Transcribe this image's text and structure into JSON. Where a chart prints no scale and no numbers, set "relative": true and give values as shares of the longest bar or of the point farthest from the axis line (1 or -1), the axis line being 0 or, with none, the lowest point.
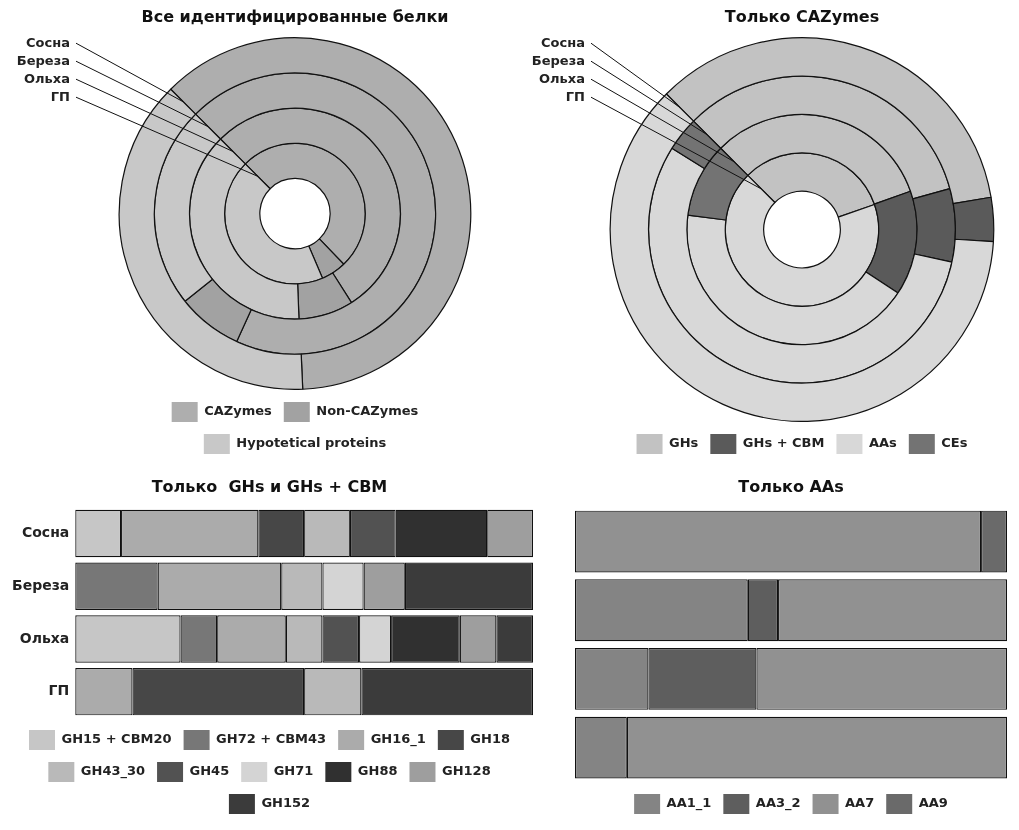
{
  "chart_data": [
    {
      "type": "donut",
      "title": "Все идентифицированные белки",
      "categories": [
        "CAZymes",
        "Non-CAZymes",
        "Hypotetical proteins"
      ],
      "colors": [
        "#aeaeae",
        "#a2a2a2",
        "#c8c8c8"
      ],
      "legend": "bottom",
      "series": [
        {
          "name": "Сосна",
          "values": [
            61.8,
            0,
            38.2
          ]
        },
        {
          "name": "Береза",
          "values": [
            69.3,
            7.5,
            23.2
          ]
        },
        {
          "name": "Ольха",
          "values": [
            53.5,
            8.4,
            38.1
          ]
        },
        {
          "name": "ГП",
          "values": [
            50.3,
            5.8,
            43.9
          ]
        }
      ]
    },
    {
      "type": "donut",
      "title": "Только CAZymes",
      "categories": [
        "GHs",
        "GHs + CBM",
        "AAs",
        "CEs"
      ],
      "colors": [
        "#c2c2c2",
        "#5a5a5a",
        "#d8d8d8",
        "#737373"
      ],
      "legend": "bottom",
      "series": [
        {
          "name": "Сосна",
          "values": [
            34.8,
            3.7,
            61.5,
            0
          ]
        },
        {
          "name": "Береза",
          "values": [
            33.2,
            7.7,
            55.5,
            3.6
          ]
        },
        {
          "name": "Ольха",
          "values": [
            32.1,
            14.7,
            42.7,
            10.5
          ]
        },
        {
          "name": "ГП",
          "values": [
            32.2,
            0,
            67.8,
            0
          ]
        }
      ]
    },
    {
      "type": "bar",
      "title": "Только  GHs и GHs + CBM",
      "orientation": "horizontal",
      "stacked": true,
      "relative": true,
      "legend": "bottom",
      "tick_labels": "y",
      "categories": [
        "Сосна",
        "Береза",
        "Ольха",
        "ГП"
      ],
      "series": [
        {
          "name": "GH15 + CBM20",
          "color": "#c6c6c6",
          "values": [
            0.1,
            0,
            0.23,
            0
          ]
        },
        {
          "name": "GH72 + CBM43",
          "color": "#777777",
          "values": [
            0,
            0.18,
            0.08,
            0
          ]
        },
        {
          "name": "GH16_1",
          "color": "#ababab",
          "values": [
            0.3,
            0.27,
            0.15,
            0.125
          ]
        },
        {
          "name": "GH18",
          "color": "#474747",
          "values": [
            0.1,
            0,
            0,
            0.375
          ]
        },
        {
          "name": "GH43_30",
          "color": "#b9b9b9",
          "values": [
            0.1,
            0.09,
            0.08,
            0.125
          ]
        },
        {
          "name": "GH45",
          "color": "#525252",
          "values": [
            0.1,
            0,
            0.08,
            0
          ]
        },
        {
          "name": "GH71",
          "color": "#d4d4d4",
          "values": [
            0,
            0.09,
            0.07,
            0
          ]
        },
        {
          "name": "GH88",
          "color": "#303030",
          "values": [
            0.2,
            0,
            0.15,
            0
          ]
        },
        {
          "name": "GH128",
          "color": "#9e9e9e",
          "values": [
            0.1,
            0.09,
            0.08,
            0
          ]
        },
        {
          "name": "GH152",
          "color": "#3b3b3b",
          "values": [
            0,
            0.28,
            0.08,
            0.375
          ]
        }
      ]
    },
    {
      "type": "bar",
      "title": "Только AAs",
      "orientation": "horizontal",
      "stacked": true,
      "relative": true,
      "legend": "bottom",
      "categories": [
        null,
        null,
        null,
        null
      ],
      "series": [
        {
          "name": "AA1_1",
          "color": "#848484",
          "values": [
            0,
            0.4,
            0.17,
            0.12
          ]
        },
        {
          "name": "AA3_2",
          "color": "#5e5e5e",
          "values": [
            0,
            0.07,
            0.25,
            0
          ]
        },
        {
          "name": "AA7",
          "color": "#919191",
          "values": [
            0.94,
            0.53,
            0.58,
            0.88
          ]
        },
        {
          "name": "AA9",
          "color": "#6a6a6a",
          "values": [
            0.06,
            0,
            0,
            0
          ]
        }
      ]
    }
  ]
}
